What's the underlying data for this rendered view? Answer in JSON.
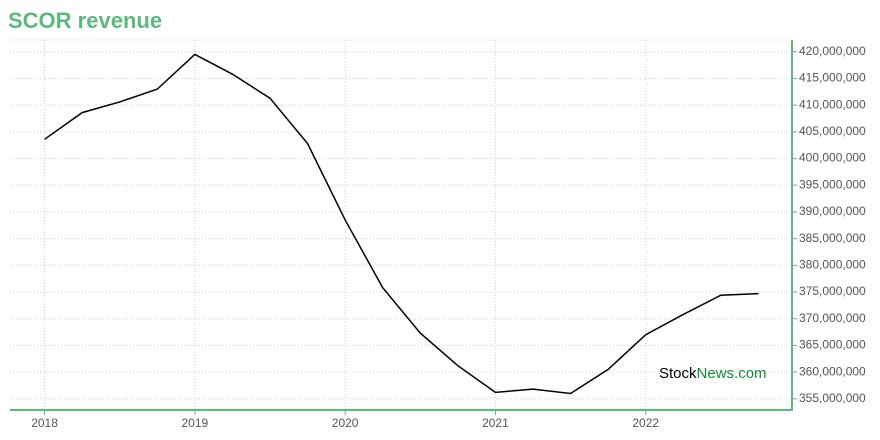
{
  "chart_data": {
    "type": "line",
    "title": "SCOR revenue",
    "x": [
      2018,
      2018.25,
      2018.5,
      2018.75,
      2019,
      2019.25,
      2019.5,
      2019.75,
      2020,
      2020.25,
      2020.5,
      2020.75,
      2021,
      2021.25,
      2021.5,
      2021.75,
      2022,
      2022.25,
      2022.5,
      2022.75
    ],
    "series": [
      {
        "name": "Revenue",
        "color": "#000000",
        "values": [
          403600000,
          408600000,
          410600000,
          413000000,
          419500000,
          415800000,
          411300000,
          402800000,
          388500000,
          375800000,
          367300000,
          361200000,
          356200000,
          356800000,
          356000000,
          360500000,
          367000000,
          370800000,
          374400000,
          374700000
        ]
      }
    ],
    "xlim": [
      2017.77,
      2022.96
    ],
    "xticks": [
      2018,
      2019,
      2020,
      2021,
      2022
    ],
    "ylim": [
      352900000,
      422200000
    ],
    "yticks": [
      {
        "value": 355000000,
        "label": "355,000,000"
      },
      {
        "value": 360000000,
        "label": "360,000,000"
      },
      {
        "value": 365000000,
        "label": "365,000,000"
      },
      {
        "value": 370000000,
        "label": "370,000,000"
      },
      {
        "value": 375000000,
        "label": "375,000,000"
      },
      {
        "value": 380000000,
        "label": "380,000,000"
      },
      {
        "value": 385000000,
        "label": "385,000,000"
      },
      {
        "value": 390000000,
        "label": "390,000,000"
      },
      {
        "value": 395000000,
        "label": "395,000,000"
      },
      {
        "value": 400000000,
        "label": "400,000,000"
      },
      {
        "value": 405000000,
        "label": "405,000,000"
      },
      {
        "value": 410000000,
        "label": "410,000,000"
      },
      {
        "value": 415000000,
        "label": "415,000,000"
      },
      {
        "value": 420000000,
        "label": "420,000,000"
      }
    ],
    "grid": true,
    "annotations": [
      "Stock",
      "News.com"
    ]
  }
}
